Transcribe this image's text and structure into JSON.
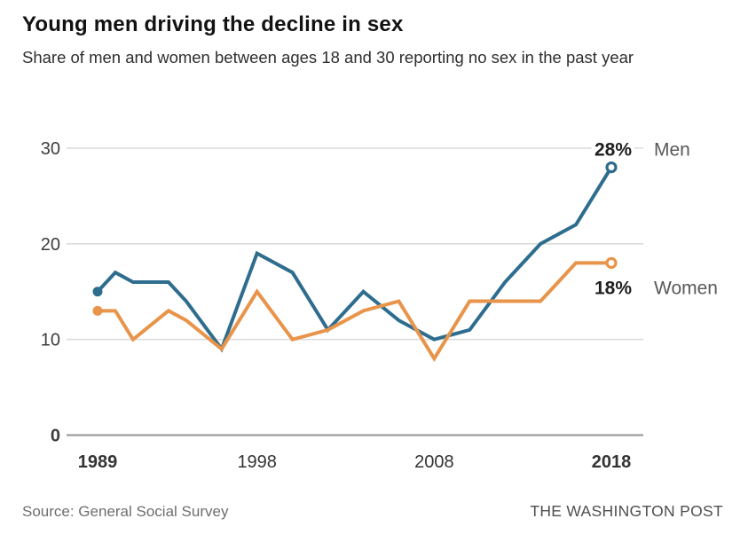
{
  "header": {
    "title": "Young men driving the decline in sex",
    "subtitle": "Share of men and women between ages 18 and 30 reporting no sex in the past year"
  },
  "footer": {
    "source": "Source: General Social Survey",
    "credit": "THE WASHINGTON POST"
  },
  "chart_data": {
    "type": "line",
    "title": "Young men driving the decline in sex",
    "xlabel": "",
    "ylabel": "",
    "x": [
      1989,
      1990,
      1991,
      1993,
      1994,
      1996,
      1998,
      2000,
      2002,
      2004,
      2006,
      2008,
      2010,
      2012,
      2014,
      2016,
      2018
    ],
    "series": [
      {
        "name": "Men",
        "color": "#2e6d8e",
        "values": [
          15,
          17,
          16,
          16,
          14,
          9,
          19,
          17,
          11,
          15,
          12,
          10,
          11,
          16,
          20,
          22,
          28
        ],
        "end_label": "28%",
        "label_side": "above",
        "start_marker": "filled-dot",
        "end_marker": "open-circle"
      },
      {
        "name": "Women",
        "color": "#e8944a",
        "values": [
          13,
          13,
          10,
          13,
          12,
          9,
          15,
          10,
          11,
          13,
          14,
          8,
          14,
          14,
          14,
          18,
          18
        ],
        "end_label": "18%",
        "label_side": "below",
        "start_marker": "filled-dot",
        "end_marker": "open-circle"
      }
    ],
    "xlim": [
      1989,
      2018
    ],
    "ylim": [
      0,
      30
    ],
    "yticks": [
      0,
      10,
      20,
      30
    ],
    "xticks": [
      1989,
      1998,
      2008,
      2018
    ],
    "bold_xticks": [
      1989,
      2018
    ],
    "bold_yticks": [
      0
    ],
    "grid": true,
    "legend_position": "end-of-line"
  }
}
